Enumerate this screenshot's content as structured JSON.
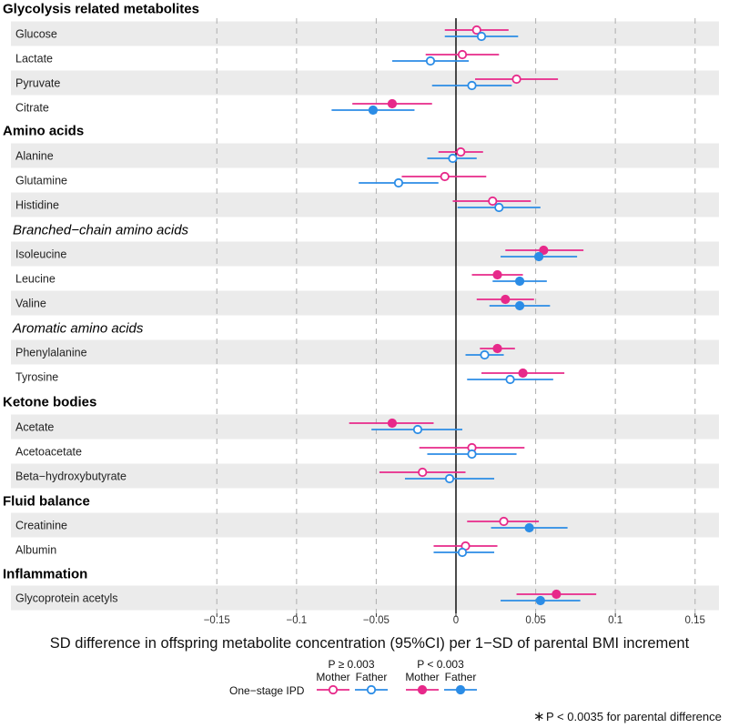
{
  "chart_data": {
    "type": "forest",
    "xlabel": "SD difference in offspring metabolite concentration (95%CI) per 1−SD of parental BMI increment",
    "xlim": [
      -0.165,
      0.165
    ],
    "x_ticks": [
      -0.15,
      -0.1,
      -0.05,
      0,
      0.05,
      0.1,
      0.15
    ],
    "x_tick_labels": [
      "−0.15",
      "−0.1",
      "−0.05",
      "0",
      "0.05",
      "0.1",
      "0.15"
    ],
    "grid": "dashed vertical",
    "series_colors": {
      "mother": "#e7298a",
      "father": "#2b8ce6"
    },
    "rows": [
      {
        "kind": "header",
        "label": "Glycolysis related metabolites"
      },
      {
        "kind": "data",
        "label": "Glucose",
        "mother": {
          "est": 0.013,
          "lo": -0.007,
          "hi": 0.033,
          "sig": false
        },
        "father": {
          "est": 0.016,
          "lo": -0.007,
          "hi": 0.039,
          "sig": false
        }
      },
      {
        "kind": "data",
        "label": "Lactate",
        "mother": {
          "est": 0.004,
          "lo": -0.019,
          "hi": 0.027,
          "sig": false
        },
        "father": {
          "est": -0.016,
          "lo": -0.04,
          "hi": 0.008,
          "sig": false
        }
      },
      {
        "kind": "data",
        "label": "Pyruvate",
        "mother": {
          "est": 0.038,
          "lo": 0.012,
          "hi": 0.064,
          "sig": false
        },
        "father": {
          "est": 0.01,
          "lo": -0.015,
          "hi": 0.035,
          "sig": false
        }
      },
      {
        "kind": "data",
        "label": "Citrate",
        "mother": {
          "est": -0.04,
          "lo": -0.065,
          "hi": -0.015,
          "sig": true
        },
        "father": {
          "est": -0.052,
          "lo": -0.078,
          "hi": -0.026,
          "sig": true
        }
      },
      {
        "kind": "header",
        "label": "Amino acids"
      },
      {
        "kind": "data",
        "label": "Alanine",
        "mother": {
          "est": 0.003,
          "lo": -0.011,
          "hi": 0.017,
          "sig": false
        },
        "father": {
          "est": -0.002,
          "lo": -0.018,
          "hi": 0.013,
          "sig": false
        }
      },
      {
        "kind": "data",
        "label": "Glutamine",
        "mother": {
          "est": -0.007,
          "lo": -0.034,
          "hi": 0.019,
          "sig": false
        },
        "father": {
          "est": -0.036,
          "lo": -0.061,
          "hi": -0.011,
          "sig": false
        }
      },
      {
        "kind": "data",
        "label": "Histidine",
        "mother": {
          "est": 0.023,
          "lo": -0.002,
          "hi": 0.047,
          "sig": false
        },
        "father": {
          "est": 0.027,
          "lo": 0.001,
          "hi": 0.053,
          "sig": false
        }
      },
      {
        "kind": "subheader",
        "label": "Branched−chain amino acids"
      },
      {
        "kind": "data",
        "label": "Isoleucine",
        "mother": {
          "est": 0.055,
          "lo": 0.031,
          "hi": 0.08,
          "sig": true
        },
        "father": {
          "est": 0.052,
          "lo": 0.028,
          "hi": 0.076,
          "sig": true
        }
      },
      {
        "kind": "data",
        "label": "Leucine",
        "mother": {
          "est": 0.026,
          "lo": 0.01,
          "hi": 0.042,
          "sig": true
        },
        "father": {
          "est": 0.04,
          "lo": 0.023,
          "hi": 0.057,
          "sig": true
        }
      },
      {
        "kind": "data",
        "label": "Valine",
        "mother": {
          "est": 0.031,
          "lo": 0.013,
          "hi": 0.049,
          "sig": true
        },
        "father": {
          "est": 0.04,
          "lo": 0.021,
          "hi": 0.059,
          "sig": true
        }
      },
      {
        "kind": "subheader",
        "label": "Aromatic amino acids"
      },
      {
        "kind": "data",
        "label": "Phenylalanine",
        "mother": {
          "est": 0.026,
          "lo": 0.015,
          "hi": 0.037,
          "sig": true
        },
        "father": {
          "est": 0.018,
          "lo": 0.006,
          "hi": 0.03,
          "sig": false
        }
      },
      {
        "kind": "data",
        "label": "Tyrosine",
        "mother": {
          "est": 0.042,
          "lo": 0.016,
          "hi": 0.068,
          "sig": true
        },
        "father": {
          "est": 0.034,
          "lo": 0.007,
          "hi": 0.061,
          "sig": false
        }
      },
      {
        "kind": "header",
        "label": "Ketone bodies"
      },
      {
        "kind": "data",
        "label": "Acetate",
        "mother": {
          "est": -0.04,
          "lo": -0.067,
          "hi": -0.014,
          "sig": true
        },
        "father": {
          "est": -0.024,
          "lo": -0.053,
          "hi": 0.004,
          "sig": false
        }
      },
      {
        "kind": "data",
        "label": "Acetoacetate",
        "mother": {
          "est": 0.01,
          "lo": -0.023,
          "hi": 0.043,
          "sig": false
        },
        "father": {
          "est": 0.01,
          "lo": -0.018,
          "hi": 0.038,
          "sig": false
        }
      },
      {
        "kind": "data",
        "label": "Beta−hydroxybutyrate",
        "mother": {
          "est": -0.021,
          "lo": -0.048,
          "hi": 0.006,
          "sig": false
        },
        "father": {
          "est": -0.004,
          "lo": -0.032,
          "hi": 0.024,
          "sig": false
        }
      },
      {
        "kind": "header",
        "label": "Fluid balance"
      },
      {
        "kind": "data",
        "label": "Creatinine",
        "mother": {
          "est": 0.03,
          "lo": 0.007,
          "hi": 0.052,
          "sig": false
        },
        "father": {
          "est": 0.046,
          "lo": 0.022,
          "hi": 0.07,
          "sig": true
        }
      },
      {
        "kind": "data",
        "label": "Albumin",
        "mother": {
          "est": 0.006,
          "lo": -0.014,
          "hi": 0.026,
          "sig": false
        },
        "father": {
          "est": 0.004,
          "lo": -0.014,
          "hi": 0.024,
          "sig": false
        }
      },
      {
        "kind": "header",
        "label": "Inflammation"
      },
      {
        "kind": "data",
        "label": "Glycoprotein acetyls",
        "mother": {
          "est": 0.063,
          "lo": 0.038,
          "hi": 0.088,
          "sig": true
        },
        "father": {
          "est": 0.053,
          "lo": 0.028,
          "hi": 0.078,
          "sig": true
        }
      }
    ],
    "legend": {
      "title": "One−stage IPD",
      "groups": [
        {
          "label": "P ≥ 0.003",
          "filled": false
        },
        {
          "label": "P < 0.003",
          "filled": true
        }
      ],
      "mother_label": "Mother",
      "father_label": "Father"
    },
    "footnote_symbol": "∗",
    "footnote": "P < 0.0035 for parental difference"
  }
}
